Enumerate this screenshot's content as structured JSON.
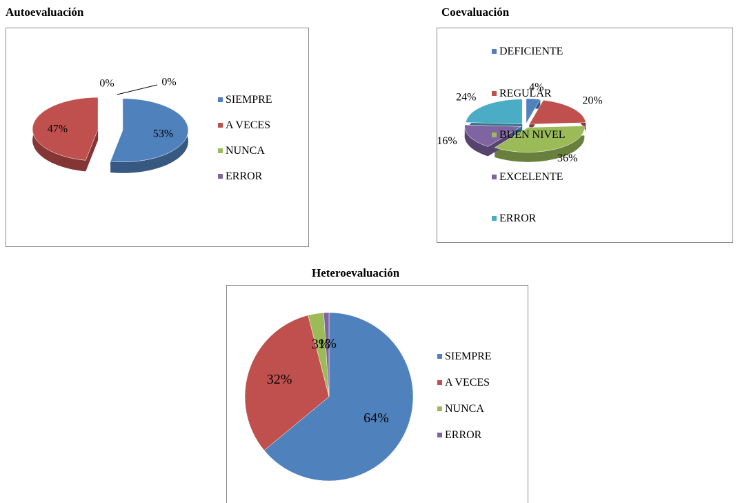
{
  "chart_data": [
    {
      "type": "pie",
      "title": "Autoevaluación",
      "categories": [
        "SIEMPRE",
        "A VECES",
        "NUNCA",
        "ERROR"
      ],
      "values": [
        53,
        47,
        0,
        0
      ],
      "value_labels": [
        "53%",
        "47%",
        "0%",
        "0%"
      ],
      "colors": [
        "#4f81bd",
        "#c0504d",
        "#9bbb59",
        "#8064a2"
      ]
    },
    {
      "type": "pie",
      "title": "Coevaluación",
      "categories": [
        "DEFICIENTE",
        "REGULAR",
        "BUEN NIVEL",
        "EXCELENTE",
        "ERROR"
      ],
      "values": [
        4,
        20,
        36,
        16,
        24
      ],
      "value_labels": [
        "4%",
        "20%",
        "36%",
        "16%",
        "24%"
      ],
      "colors": [
        "#4f81bd",
        "#c0504d",
        "#9bbb59",
        "#8064a2",
        "#4bacc6"
      ]
    },
    {
      "type": "pie",
      "title": "Heteroevaluación",
      "categories": [
        "SIEMPRE",
        "A VECES",
        "NUNCA",
        "ERROR"
      ],
      "values": [
        64,
        32,
        3,
        1
      ],
      "value_labels": [
        "64%",
        "32%",
        "3%",
        "1%"
      ],
      "colors": [
        "#4f81bd",
        "#c0504d",
        "#9bbb59",
        "#8064a2"
      ]
    }
  ]
}
